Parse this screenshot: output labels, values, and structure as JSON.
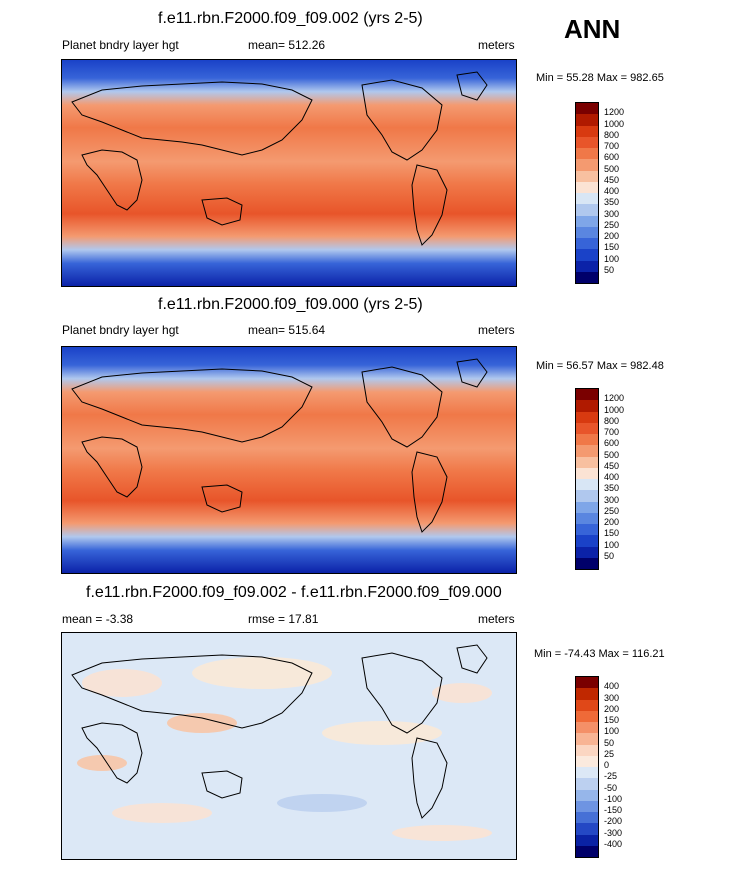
{
  "season": "ANN",
  "panels": [
    {
      "title": "f.e11.rbn.F2000.f09_f09.002 (yrs 2-5)",
      "left_label": "Planet bndry layer hgt",
      "center_label": "mean= 512.26",
      "units": "meters",
      "minmax": "Min =  55.28 Max = 982.65",
      "levels": [
        "1200",
        "1000",
        "800",
        "700",
        "600",
        "500",
        "450",
        "400",
        "350",
        "300",
        "250",
        "200",
        "150",
        "100",
        "50"
      ]
    },
    {
      "title": "f.e11.rbn.F2000.f09_f09.000 (yrs 2-5)",
      "left_label": "Planet bndry layer hgt",
      "center_label": "mean= 515.64",
      "units": "meters",
      "minmax": "Min =  56.57 Max = 982.48",
      "levels": [
        "1200",
        "1000",
        "800",
        "700",
        "600",
        "500",
        "450",
        "400",
        "350",
        "300",
        "250",
        "200",
        "150",
        "100",
        "50"
      ]
    },
    {
      "title": "f.e11.rbn.F2000.f09_f09.002 - f.e11.rbn.F2000.f09_f09.000",
      "left_label": "mean =  -3.38",
      "center_label": "rmse =  17.81",
      "units": "meters",
      "minmax": "Min = -74.43 Max = 116.21",
      "levels": [
        "400",
        "300",
        "200",
        "150",
        "100",
        "50",
        "25",
        "0",
        "-25",
        "-50",
        "-100",
        "-150",
        "-200",
        "-300",
        "-400"
      ]
    }
  ],
  "colors": {
    "scale_abs": [
      "#7a0000",
      "#b01a00",
      "#d83a10",
      "#e8552a",
      "#f07848",
      "#f49a70",
      "#f8c0a0",
      "#fbe3d4",
      "#d8e6f5",
      "#b0c8ee",
      "#7fa6e8",
      "#5a86e0",
      "#3764d8",
      "#1a42c8",
      "#0b22a8",
      "#00006a"
    ],
    "scale_diff": [
      "#7a0000",
      "#c02800",
      "#e04818",
      "#ef6a38",
      "#f49068",
      "#f8b494",
      "#fbd6c2",
      "#fbeade",
      "#dce8f6",
      "#bcd0f0",
      "#96b6ea",
      "#6e94e2",
      "#4670d6",
      "#2448c4",
      "#0a22a4",
      "#00006a"
    ]
  }
}
